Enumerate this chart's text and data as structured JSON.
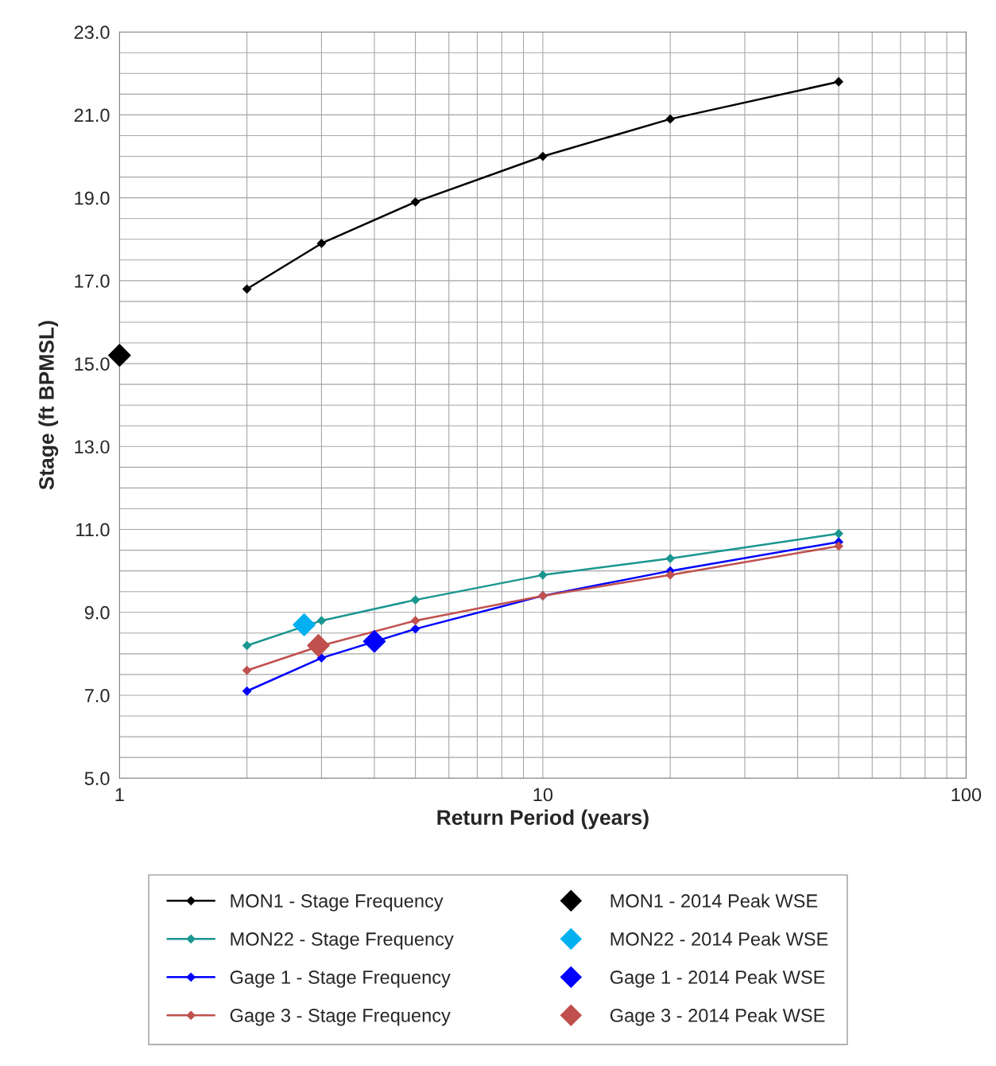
{
  "chart_data": {
    "type": "line",
    "xlabel": "Return Period (years)",
    "ylabel": "Stage (ft BPMSL)",
    "log": "x",
    "grid": true,
    "legend": "bottom",
    "marker": "diamond",
    "line_style": "solid",
    "xlim": [
      1,
      100
    ],
    "xticks": [
      1,
      10,
      100
    ],
    "ylim": [
      5,
      23
    ],
    "yticks": [
      {
        "value": 5,
        "label": "5.0"
      },
      {
        "value": 7,
        "label": "7.0"
      },
      {
        "value": 9,
        "label": "9.0"
      },
      {
        "value": 11,
        "label": "11.0"
      },
      {
        "value": 13,
        "label": "13.0"
      },
      {
        "value": 15,
        "label": "15.0"
      },
      {
        "value": 17,
        "label": "17.0"
      },
      {
        "value": 19,
        "label": "19.0"
      },
      {
        "value": 21,
        "label": "21.0"
      },
      {
        "value": 23,
        "label": "23.0"
      }
    ],
    "series": [
      {
        "name": "MON1 - Stage Frequency",
        "color": "#000000",
        "x": [
          2,
          3,
          5,
          10,
          20,
          50
        ],
        "values": [
          16.8,
          17.9,
          18.9,
          20.0,
          20.9,
          21.8
        ]
      },
      {
        "name": "MON22 - Stage Frequency",
        "color": "#1a9690",
        "x": [
          2,
          3,
          5,
          10,
          20,
          50
        ],
        "values": [
          8.2,
          8.8,
          9.3,
          9.9,
          10.3,
          10.9
        ]
      },
      {
        "name": "Gage 1 - Stage Frequency",
        "color": "#0000ff",
        "x": [
          2,
          3,
          5,
          10,
          20,
          50
        ],
        "values": [
          7.1,
          7.9,
          8.6,
          9.4,
          10.0,
          10.7
        ]
      },
      {
        "name": "Gage 3 - Stage Frequency",
        "color": "#c0504d",
        "x": [
          2,
          3,
          5,
          10,
          20,
          50
        ],
        "values": [
          7.6,
          8.2,
          8.8,
          9.4,
          9.9,
          10.6
        ]
      },
      {
        "name": "MON1 - 2014 Peak WSE",
        "type": "scatter",
        "color": "#000000",
        "x": [
          1
        ],
        "values": [
          15.2
        ]
      },
      {
        "name": "MON22 - 2014 Peak WSE",
        "type": "scatter",
        "color": "#00b0f0",
        "x": [
          2.73
        ],
        "values": [
          8.7
        ]
      },
      {
        "name": "Gage 1 - 2014 Peak WSE",
        "type": "scatter",
        "color": "#0000ff",
        "x": [
          4.0
        ],
        "values": [
          8.3
        ]
      },
      {
        "name": "Gage 3 - 2014 Peak WSE",
        "type": "scatter",
        "color": "#c0504d",
        "x": [
          2.95
        ],
        "values": [
          8.2
        ]
      }
    ]
  }
}
